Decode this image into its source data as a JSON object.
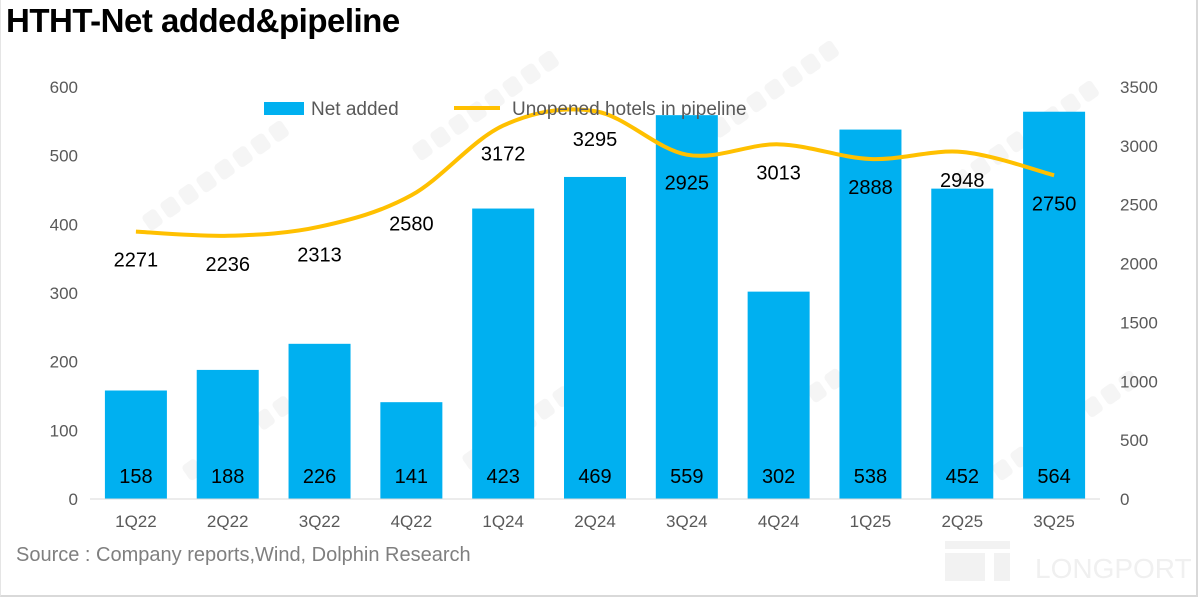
{
  "title": "HTHT-Net added&pipeline",
  "source": "Source : Company reports,Wind, Dolphin Research",
  "watermark": "DolphinResearch",
  "logo_text": "LONGPORT",
  "colors": {
    "bar": "#00B0F0",
    "line": "#FFC000",
    "axis_text": "#595959"
  },
  "chart_data": {
    "type": "bar+line",
    "categories": [
      "1Q22",
      "2Q22",
      "3Q22",
      "4Q22",
      "1Q24",
      "2Q24",
      "3Q24",
      "4Q24",
      "1Q25",
      "2Q25",
      "3Q25"
    ],
    "series": [
      {
        "name": "Net added",
        "type": "bar",
        "axis": "left",
        "values": [
          158,
          188,
          226,
          141,
          423,
          469,
          559,
          302,
          538,
          452,
          564
        ]
      },
      {
        "name": "Unopened hotels in pipeline",
        "type": "line",
        "smooth": true,
        "axis": "right",
        "values": [
          2271,
          2236,
          2313,
          2580,
          3172,
          3295,
          2925,
          3013,
          2888,
          2948,
          2750
        ]
      }
    ],
    "left_axis": {
      "ylim": [
        0,
        600
      ],
      "ticks": [
        0,
        100,
        200,
        300,
        400,
        500,
        600
      ]
    },
    "right_axis": {
      "ylim": [
        0,
        3500
      ],
      "ticks": [
        0,
        500,
        1000,
        1500,
        2000,
        2500,
        3000,
        3500
      ]
    },
    "legend": "top-center",
    "grid": false
  }
}
